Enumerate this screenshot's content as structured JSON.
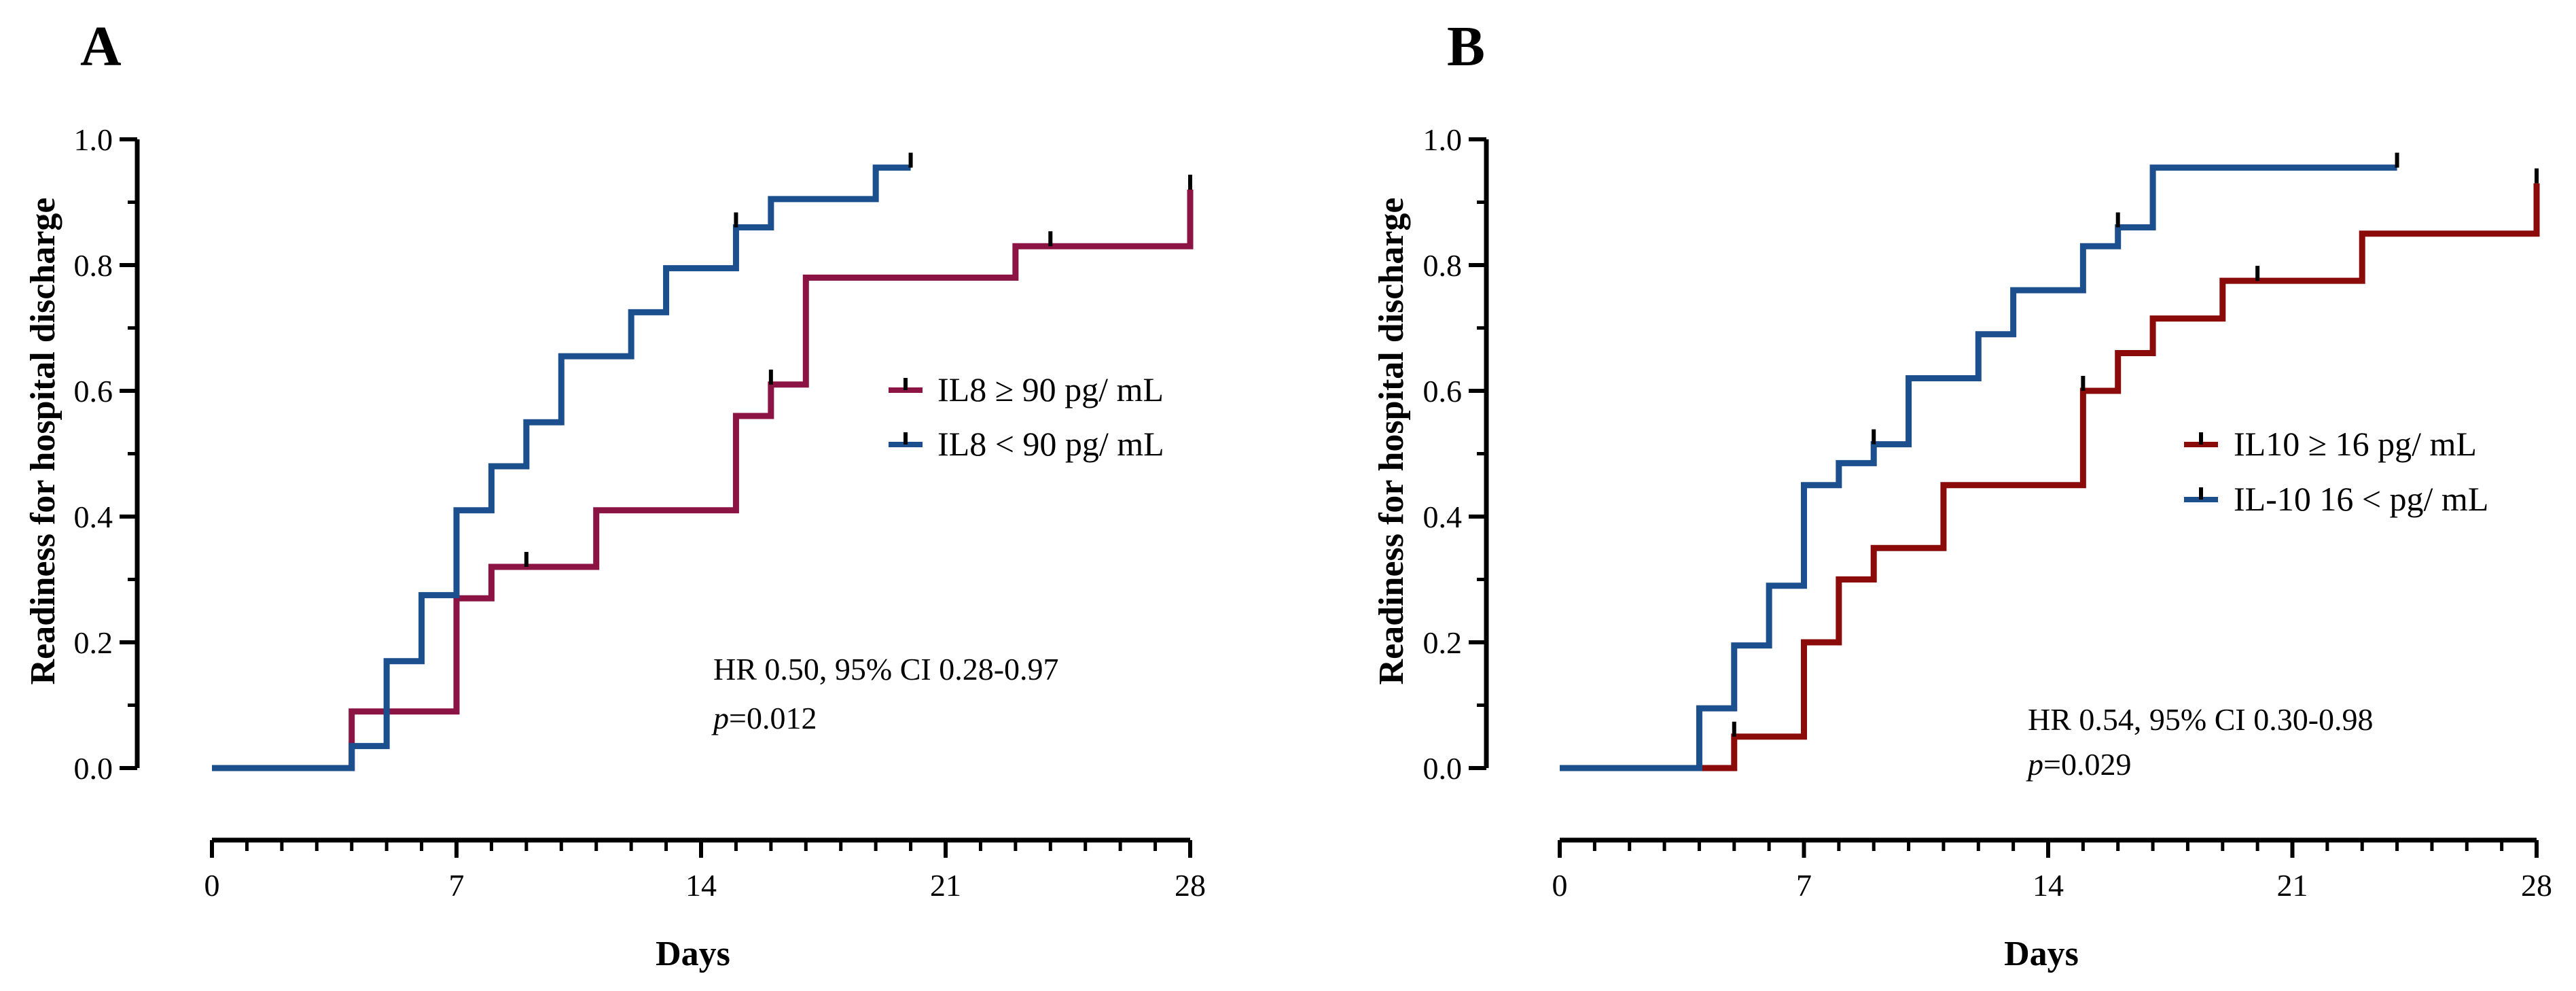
{
  "chart_data": [
    {
      "panel": "A",
      "type": "line",
      "subtype": "kaplan-meier-step",
      "xlabel": "Days",
      "ylabel": "Readiness for hospital discharge",
      "xlim": [
        0,
        28
      ],
      "ylim": [
        0,
        1.0
      ],
      "xticks": [
        0,
        7,
        14,
        21,
        28
      ],
      "xtick_labels": [
        "0",
        "7",
        "14",
        "21",
        "28"
      ],
      "yticks": [
        0,
        0.2,
        0.4,
        0.6,
        0.8,
        1.0
      ],
      "ytick_labels": [
        "0.0",
        "0.2",
        "0.4",
        "0.6",
        "0.8",
        "1.0"
      ],
      "legend_position": "center-right",
      "stats": {
        "line1": "HR 0.50, 95% CI 0.28-0.97",
        "p_label": "p",
        "p_value": "=0.012"
      },
      "series": [
        {
          "name": "IL8 ≥ 90 pg/ mL",
          "color": "#8B1445",
          "x": [
            0,
            4,
            7,
            8,
            11,
            15,
            16,
            17,
            23,
            28
          ],
          "y": [
            0,
            0.09,
            0.27,
            0.32,
            0.41,
            0.56,
            0.61,
            0.78,
            0.83,
            0.92
          ],
          "end": 28,
          "censored": [
            [
              9,
              0.32
            ],
            [
              16,
              0.61
            ],
            [
              24,
              0.83
            ],
            [
              28,
              0.92
            ]
          ]
        },
        {
          "name": "IL8 < 90 pg/ mL",
          "color": "#1B4F8E",
          "x": [
            0,
            4,
            5,
            6,
            7,
            8,
            9,
            10,
            12,
            13,
            15,
            16,
            19
          ],
          "y": [
            0,
            0.035,
            0.17,
            0.275,
            0.41,
            0.48,
            0.55,
            0.655,
            0.725,
            0.795,
            0.86,
            0.905,
            0.955
          ],
          "end": 20,
          "censored": [
            [
              15,
              0.86
            ],
            [
              20,
              0.955
            ]
          ]
        }
      ]
    },
    {
      "panel": "B",
      "type": "line",
      "subtype": "kaplan-meier-step",
      "xlabel": "Days",
      "ylabel": "Readiness for hospital discharge",
      "xlim": [
        0,
        28
      ],
      "ylim": [
        0,
        1.0
      ],
      "xticks": [
        0,
        7,
        14,
        21,
        28
      ],
      "xtick_labels": [
        "0",
        "7",
        "14",
        "21",
        "28"
      ],
      "yticks": [
        0,
        0.2,
        0.4,
        0.6,
        0.8,
        1.0
      ],
      "ytick_labels": [
        "0.0",
        "0.2",
        "0.4",
        "0.6",
        "0.8",
        "1.0"
      ],
      "legend_position": "center-right",
      "stats": {
        "line1": "HR 0.54, 95% CI 0.30-0.98",
        "p_label": "p",
        "p_value": "=0.029"
      },
      "series": [
        {
          "name": "IL10 ≥ 16 pg/ mL",
          "color": "#8B0A0A",
          "x": [
            0,
            5,
            7,
            8,
            9,
            11,
            15,
            16,
            17,
            19,
            23,
            28
          ],
          "y": [
            0,
            0.05,
            0.2,
            0.3,
            0.35,
            0.45,
            0.6,
            0.66,
            0.715,
            0.775,
            0.85,
            0.93
          ],
          "end": 28,
          "censored": [
            [
              5,
              0.05
            ],
            [
              15,
              0.6
            ],
            [
              20,
              0.775
            ],
            [
              28,
              0.93
            ]
          ]
        },
        {
          "name": "IL-10 16 < pg/ mL",
          "color": "#1B4F8E",
          "x": [
            0,
            4,
            5,
            6,
            7,
            8,
            9,
            10,
            12,
            13,
            15,
            16,
            17
          ],
          "y": [
            0,
            0.095,
            0.195,
            0.29,
            0.45,
            0.485,
            0.515,
            0.62,
            0.69,
            0.76,
            0.83,
            0.86,
            0.955
          ],
          "end": 24,
          "censored": [
            [
              9,
              0.515
            ],
            [
              16,
              0.86
            ],
            [
              24,
              0.955
            ]
          ]
        }
      ]
    }
  ]
}
